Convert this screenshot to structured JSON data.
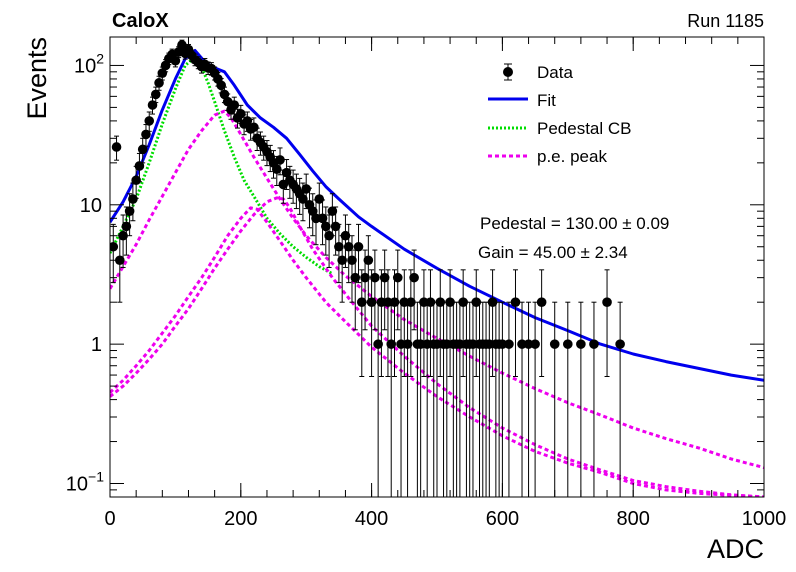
{
  "header": {
    "experiment": "CaloX",
    "run": "Run 1185"
  },
  "chart_data": {
    "type": "scatter",
    "xlabel": "ADC",
    "ylabel": "Events",
    "xlim": [
      0,
      1000
    ],
    "ylim": [
      0.08,
      160
    ],
    "yscale": "log",
    "grid": false,
    "legend_position": "top-right",
    "x_ticks": [
      "0",
      "200",
      "400",
      "600",
      "800",
      "1000"
    ],
    "y_ticks": [
      {
        "mantissa": "10",
        "exp": "−1",
        "value": 0.1
      },
      {
        "mantissa": "1",
        "exp": "",
        "value": 1
      },
      {
        "mantissa": "10",
        "exp": "",
        "value": 10
      },
      {
        "mantissa": "10",
        "exp": "2",
        "value": 100
      }
    ],
    "legend": [
      {
        "label": "Data",
        "key": "data"
      },
      {
        "label": "Fit",
        "key": "fit"
      },
      {
        "label": "Pedestal CB",
        "key": "pedestal"
      },
      {
        "label": "p.e. peak",
        "key": "pe"
      }
    ],
    "annotations": {
      "pedestal": "Pedestal = 130.00 ± 0.09",
      "gain": "Gain = 45.00 ± 2.34"
    },
    "colors": {
      "data": "#000000",
      "fit": "#0000ee",
      "pedestal": "#00dd00",
      "pe": "#ee00ee"
    },
    "series": [
      {
        "name": "Data",
        "x": [
          5,
          10,
          15,
          20,
          25,
          30,
          35,
          40,
          45,
          50,
          55,
          60,
          65,
          70,
          75,
          80,
          85,
          90,
          95,
          100,
          105,
          110,
          115,
          120,
          125,
          130,
          135,
          140,
          145,
          150,
          155,
          160,
          165,
          170,
          175,
          180,
          185,
          190,
          195,
          200,
          205,
          210,
          215,
          220,
          225,
          230,
          235,
          240,
          245,
          250,
          255,
          260,
          265,
          270,
          275,
          280,
          285,
          290,
          295,
          300,
          305,
          310,
          315,
          320,
          325,
          330,
          335,
          340,
          345,
          350,
          355,
          360,
          365,
          370,
          375,
          380,
          385,
          390,
          395,
          400,
          405,
          410,
          415,
          420,
          425,
          430,
          435,
          440,
          445,
          450,
          455,
          460,
          465,
          470,
          475,
          480,
          485,
          490,
          495,
          500,
          505,
          510,
          515,
          520,
          525,
          530,
          535,
          540,
          545,
          550,
          555,
          560,
          565,
          570,
          575,
          580,
          585,
          590,
          595,
          600,
          610,
          620,
          630,
          640,
          650,
          660,
          680,
          700,
          720,
          740,
          760,
          780
        ],
        "y": [
          5,
          26,
          4,
          6,
          7,
          9,
          11,
          15,
          19,
          25,
          32,
          40,
          52,
          62,
          75,
          88,
          100,
          112,
          120,
          108,
          125,
          140,
          122,
          130,
          118,
          110,
          105,
          98,
          102,
          96,
          95,
          88,
          80,
          72,
          62,
          55,
          48,
          52,
          42,
          45,
          38,
          40,
          35,
          36,
          30,
          28,
          26,
          24,
          22,
          20,
          18,
          21,
          14,
          17,
          15,
          14,
          13,
          12,
          11,
          13,
          10,
          9,
          8,
          11,
          8,
          7,
          6,
          9,
          7,
          5,
          4,
          6,
          5,
          4,
          3,
          5,
          2,
          3,
          4,
          2,
          3,
          1,
          2,
          3,
          2,
          1,
          2,
          3,
          1,
          2,
          1,
          2,
          3,
          1,
          1,
          2,
          1,
          2,
          1,
          1,
          2,
          1,
          1,
          2,
          1,
          1,
          1,
          2,
          1,
          1,
          1,
          2,
          1,
          1,
          1,
          1,
          2,
          1,
          1,
          1,
          1,
          2,
          1,
          1,
          1,
          2,
          1,
          1,
          1,
          1,
          2,
          1
        ]
      },
      {
        "name": "Fit",
        "x": [
          0,
          20,
          40,
          60,
          80,
          100,
          115,
          130,
          145,
          160,
          175,
          190,
          210,
          230,
          250,
          270,
          290,
          310,
          330,
          350,
          380,
          400,
          450,
          500,
          550,
          600,
          650,
          700,
          750,
          800,
          850,
          900,
          950,
          1000
        ],
        "y": [
          7.5,
          10.5,
          16,
          27,
          48,
          80,
          112,
          128,
          106,
          96,
          90,
          72,
          52,
          42,
          36,
          30,
          23,
          17.5,
          13.5,
          11,
          8.2,
          7,
          4.8,
          3.5,
          2.6,
          2.0,
          1.55,
          1.25,
          1.0,
          0.85,
          0.75,
          0.67,
          0.6,
          0.55
        ]
      },
      {
        "name": "Pedestal CB",
        "x": [
          0,
          20,
          40,
          60,
          80,
          100,
          115,
          130,
          140,
          150,
          160,
          175,
          190,
          205,
          220,
          240,
          260,
          280,
          300,
          320,
          340
        ],
        "y": [
          4.5,
          7,
          11,
          20,
          38,
          68,
          100,
          115,
          98,
          75,
          55,
          34,
          22,
          15,
          11.5,
          8,
          6.2,
          5,
          4.2,
          3.6,
          3.2
        ]
      },
      {
        "name": "p.e. peak",
        "x": [
          0,
          20,
          40,
          60,
          80,
          100,
          120,
          140,
          160,
          175,
          185,
          200,
          220,
          240,
          260,
          280,
          300,
          330,
          360,
          400,
          450,
          500,
          550,
          600,
          650,
          700,
          750,
          800,
          850,
          900,
          950,
          1000
        ],
        "y": [
          2.5,
          3.6,
          5.2,
          7.8,
          11.5,
          17,
          25,
          34,
          44,
          47,
          42,
          32,
          22,
          15.5,
          11,
          8,
          6,
          4.2,
          3.1,
          2.2,
          1.5,
          1.1,
          0.82,
          0.62,
          0.48,
          0.38,
          0.31,
          0.25,
          0.21,
          0.18,
          0.15,
          0.13
        ]
      },
      {
        "name": "p.e. peak",
        "x": [
          0,
          20,
          40,
          60,
          80,
          100,
          120,
          140,
          160,
          180,
          200,
          215,
          225,
          240,
          260,
          280,
          300,
          330,
          360,
          400,
          450,
          500,
          550,
          600,
          650,
          700,
          750,
          800,
          850,
          900,
          950,
          1000
        ],
        "y": [
          0.45,
          0.55,
          0.7,
          0.9,
          1.2,
          1.6,
          2.2,
          3.0,
          4.2,
          6.0,
          8.0,
          9.5,
          9.3,
          7.5,
          5.5,
          4.0,
          3.0,
          2.0,
          1.45,
          0.95,
          0.62,
          0.42,
          0.3,
          0.22,
          0.17,
          0.14,
          0.12,
          0.1,
          0.09,
          0.085,
          0.082,
          0.08
        ]
      },
      {
        "name": "p.e. peak",
        "x": [
          0,
          20,
          40,
          60,
          80,
          100,
          120,
          140,
          160,
          180,
          200,
          220,
          240,
          255,
          265,
          275,
          290,
          310,
          340,
          370,
          400,
          450,
          500,
          550,
          600,
          650,
          700,
          750,
          800,
          850,
          900,
          950,
          1000
        ],
        "y": [
          0.42,
          0.5,
          0.62,
          0.78,
          1.0,
          1.35,
          1.8,
          2.5,
          3.5,
          4.8,
          6.5,
          8.5,
          10.5,
          11.2,
          11.0,
          9.5,
          7.0,
          4.8,
          3.0,
          2.0,
          1.35,
          0.82,
          0.52,
          0.35,
          0.25,
          0.19,
          0.15,
          0.125,
          0.105,
          0.095,
          0.088,
          0.083,
          0.08
        ]
      }
    ]
  }
}
